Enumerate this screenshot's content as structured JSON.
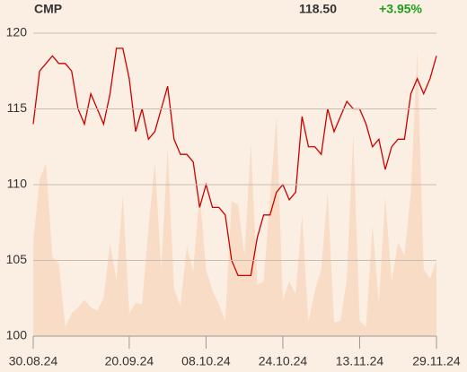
{
  "chart_data": {
    "type": "line",
    "header": {
      "symbol": "CMP",
      "price": "118.50",
      "change": "+3.95%",
      "change_color": "#1aa01a"
    },
    "x": [
      0,
      1,
      2,
      3,
      4,
      5,
      6,
      7,
      8,
      9,
      10,
      11,
      12,
      13,
      14,
      15,
      16,
      17,
      18,
      19,
      20,
      21,
      22,
      23,
      24,
      25,
      26,
      27,
      28,
      29,
      30,
      31,
      32,
      33,
      34,
      35,
      36,
      37,
      38,
      39,
      40,
      41,
      42,
      43,
      44,
      45,
      46,
      47,
      48,
      49,
      50,
      51,
      52,
      53,
      54,
      55,
      56,
      57,
      58,
      59,
      60,
      61,
      62,
      63
    ],
    "series": [
      {
        "type": "area",
        "color": "#f8dcc6",
        "values": [
          106.2,
          110.4,
          111.4,
          105.2,
          104.8,
          100.6,
          101.5,
          101.9,
          102.4,
          101.9,
          101.7,
          102.5,
          106.1,
          103.7,
          109.3,
          101.5,
          102.2,
          102.1,
          107.1,
          111.5,
          104.4,
          112.4,
          103.1,
          102.0,
          105.9,
          104.3,
          109.5,
          104.4,
          103.0,
          102.1,
          101.0,
          108.9,
          108.7,
          105.3,
          112.7,
          103.4,
          103.6,
          109.2,
          114.5,
          102.4,
          103.6,
          102.8,
          108.0,
          100.9,
          103.0,
          104.4,
          109.5,
          100.9,
          101.0,
          103.8,
          113.3,
          101.0,
          100.6,
          107.3,
          102.2,
          109.2,
          103.6,
          106.2,
          105.3,
          109.5,
          118.8,
          104.4,
          103.8,
          105.0
        ]
      },
      {
        "type": "line",
        "color": "#cc0000",
        "values": [
          114.0,
          117.5,
          118.0,
          118.5,
          118.0,
          118.0,
          117.5,
          115.0,
          114.0,
          116.0,
          115.0,
          114.0,
          116.0,
          119.0,
          119.0,
          117.0,
          113.5,
          115.0,
          113.0,
          113.5,
          115.0,
          116.5,
          113.0,
          112.0,
          112.0,
          111.5,
          108.5,
          110.0,
          108.5,
          108.5,
          108.0,
          105.0,
          104.0,
          104.0,
          104.0,
          106.5,
          108.0,
          108.0,
          109.5,
          110.0,
          109.0,
          109.5,
          114.5,
          112.5,
          112.5,
          112.0,
          115.0,
          113.5,
          114.5,
          115.5,
          115.0,
          115.0,
          114.0,
          112.5,
          113.0,
          111.0,
          112.5,
          113.0,
          113.0,
          116.0,
          117.0,
          116.0,
          117.0,
          118.5
        ]
      }
    ],
    "xlim": [
      0,
      63
    ],
    "xticks": [
      {
        "value": 0,
        "label": "30.08.24"
      },
      {
        "value": 15,
        "label": "20.09.24"
      },
      {
        "value": 27,
        "label": "08.10.24"
      },
      {
        "value": 39,
        "label": "24.10.24"
      },
      {
        "value": 51,
        "label": "13.11.24"
      },
      {
        "value": 63,
        "label": "29.11.24"
      }
    ],
    "ylim": [
      100,
      120
    ],
    "yticks": [
      100,
      105,
      110,
      115,
      120
    ],
    "grid": true
  }
}
